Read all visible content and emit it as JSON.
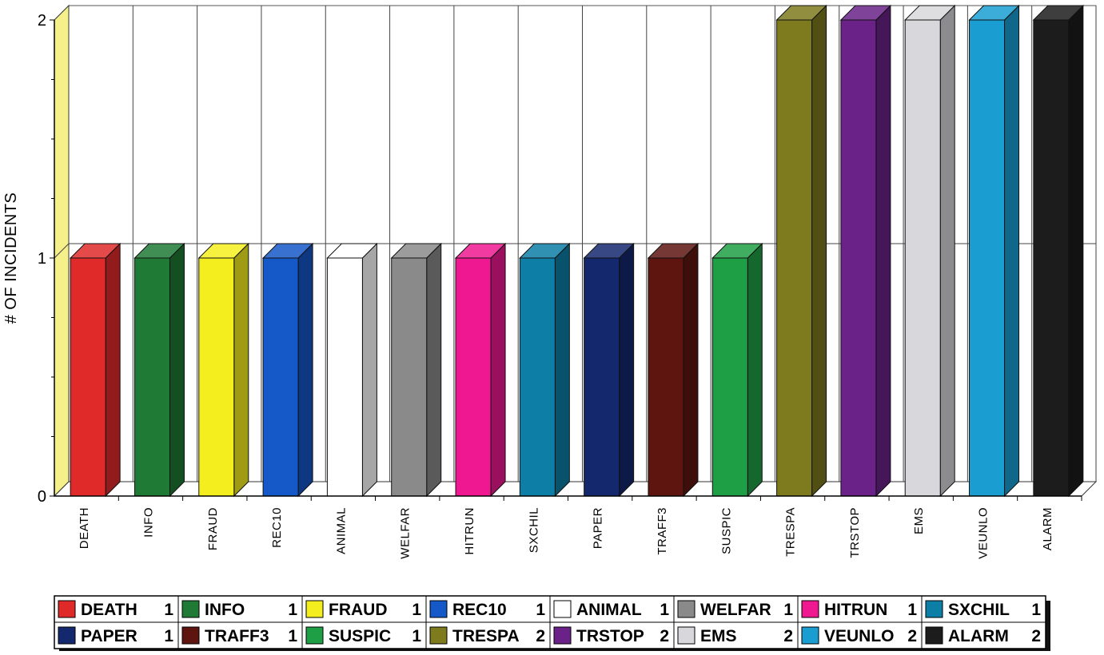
{
  "chart_data": {
    "type": "bar",
    "title": "",
    "xlabel": "",
    "ylabel": "# OF INCIDENTS",
    "ylim": [
      0,
      2
    ],
    "yticks": [
      "0",
      "1",
      "2"
    ],
    "grid": true,
    "legend_position": "bottom",
    "categories": [
      "DEATH",
      "INFO",
      "FRAUD",
      "REC10",
      "ANIMAL",
      "WELFAR",
      "HITRUN",
      "SXCHIL",
      "PAPER",
      "TRAFF3",
      "SUSPIC",
      "TRESPA",
      "TRSTOP",
      "EMS",
      "VEUNLO",
      "ALARM"
    ],
    "values": [
      1,
      1,
      1,
      1,
      1,
      1,
      1,
      1,
      1,
      1,
      1,
      2,
      2,
      2,
      2,
      2
    ],
    "colors": [
      "#e02a2a",
      "#1e7a35",
      "#f5ee1e",
      "#1558c8",
      "#ffffff",
      "#8a8a8a",
      "#ef1890",
      "#0d7ea6",
      "#14286e",
      "#5e1510",
      "#1e9e45",
      "#7e7a1e",
      "#6a2288",
      "#d8d8dc",
      "#1a9ed2",
      "#1c1c1c"
    ],
    "legend": [
      {
        "name": "DEATH",
        "value": "1"
      },
      {
        "name": "INFO",
        "value": "1"
      },
      {
        "name": "FRAUD",
        "value": "1"
      },
      {
        "name": "REC10",
        "value": "1"
      },
      {
        "name": "ANIMAL",
        "value": "1"
      },
      {
        "name": "WELFAR",
        "value": "1"
      },
      {
        "name": "HITRUN",
        "value": "1"
      },
      {
        "name": "SXCHIL",
        "value": "1"
      },
      {
        "name": "PAPER",
        "value": "1"
      },
      {
        "name": "TRAFF3",
        "value": "1"
      },
      {
        "name": "SUSPIC",
        "value": "1"
      },
      {
        "name": "TRESPA",
        "value": "2"
      },
      {
        "name": "TRSTOP",
        "value": "2"
      },
      {
        "name": "EMS",
        "value": "2"
      },
      {
        "name": "VEUNLO",
        "value": "2"
      },
      {
        "name": "ALARM",
        "value": "2"
      }
    ]
  }
}
